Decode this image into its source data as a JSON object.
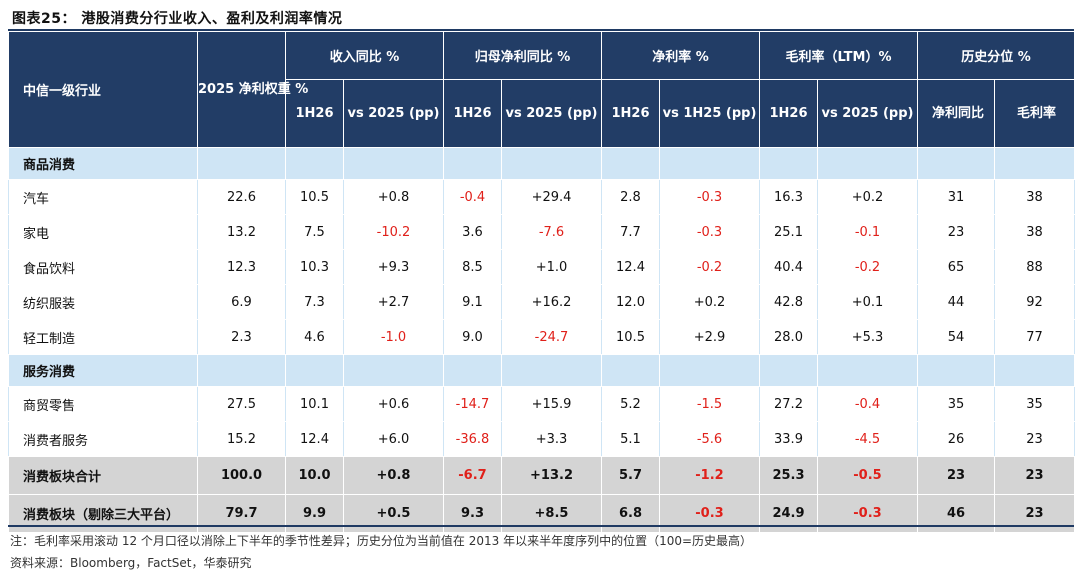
{
  "title": "图表25：  港股消费分行业收入、盈利及利润率情况",
  "header": {
    "industry": "中信一级行业",
    "weight": "2025 净利权重 %",
    "revenue_group": "收入同比 %",
    "profit_group": "归母净利同比 %",
    "net_margin_group": "净利率 %",
    "gross_margin_group": "毛利率（LTM）%",
    "percentile_group": "历史分位 %",
    "sub": {
      "rev_1h": "1H26",
      "rev_vs": "vs 2025 (pp)",
      "profit_1h": "1H26",
      "profit_vs": "vs 2025 (pp)",
      "nm_1h": "1H26",
      "nm_vs": "vs 1H25 (pp)",
      "gm_1h": "1H26",
      "gm_vs": "vs 2025 (pp)",
      "pct_nm": "净利同比",
      "pct_gm": "毛利率"
    }
  },
  "sections": [
    {
      "name": "商品消费",
      "rows": [
        {
          "name": "汽车",
          "cells": [
            "22.6",
            "10.5",
            "+0.8",
            "-0.4",
            "+29.4",
            "2.8",
            "-0.3",
            "16.3",
            "+0.2",
            "31",
            "38"
          ]
        },
        {
          "name": "家电",
          "cells": [
            "13.2",
            "7.5",
            "-10.2",
            "3.6",
            "-7.6",
            "7.7",
            "-0.3",
            "25.1",
            "-0.1",
            "23",
            "38"
          ]
        },
        {
          "name": "食品饮料",
          "cells": [
            "12.3",
            "10.3",
            "+9.3",
            "8.5",
            "+1.0",
            "12.4",
            "-0.2",
            "40.4",
            "-0.2",
            "65",
            "88"
          ]
        },
        {
          "name": "纺织服装",
          "cells": [
            "6.9",
            "7.3",
            "+2.7",
            "9.1",
            "+16.2",
            "12.0",
            "+0.2",
            "42.8",
            "+0.1",
            "44",
            "92"
          ]
        },
        {
          "name": "轻工制造",
          "cells": [
            "2.3",
            "4.6",
            "-1.0",
            "9.0",
            "-24.7",
            "10.5",
            "+2.9",
            "28.0",
            "+5.3",
            "54",
            "77"
          ]
        }
      ]
    },
    {
      "name": "服务消费",
      "rows": [
        {
          "name": "商贸零售",
          "cells": [
            "27.5",
            "10.1",
            "+0.6",
            "-14.7",
            "+15.9",
            "5.2",
            "-1.5",
            "27.2",
            "-0.4",
            "35",
            "35"
          ]
        },
        {
          "name": "消费者服务",
          "cells": [
            "15.2",
            "12.4",
            "+6.0",
            "-36.8",
            "+3.3",
            "5.1",
            "-5.6",
            "33.9",
            "-4.5",
            "26",
            "23"
          ]
        }
      ]
    }
  ],
  "totals": [
    {
      "name": "消费板块合计",
      "cells": [
        "100.0",
        "10.0",
        "+0.8",
        "-6.7",
        "+13.2",
        "5.7",
        "-1.2",
        "25.3",
        "-0.5",
        "23",
        "23"
      ]
    },
    {
      "name": "消费板块（剔除三大平台）",
      "cells": [
        "79.7",
        "9.9",
        "+0.5",
        "9.3",
        "+8.5",
        "6.8",
        "-0.3",
        "24.9",
        "-0.3",
        "46",
        "23"
      ]
    }
  ],
  "notes": {
    "line1": "注：毛利率采用滚动 12 个月口径以消除上下半年的季节性差异；历史分位为当前值在 2013 年以来半年度序列中的位置（100=历史最高）",
    "line2": "资料来源：Bloomberg，FactSet，华泰研究"
  },
  "colors": {
    "header_bg": "#223d66",
    "section_bg": "#cfe5f5",
    "total_bg": "#d4d4d4",
    "negative": "#e0201a"
  }
}
